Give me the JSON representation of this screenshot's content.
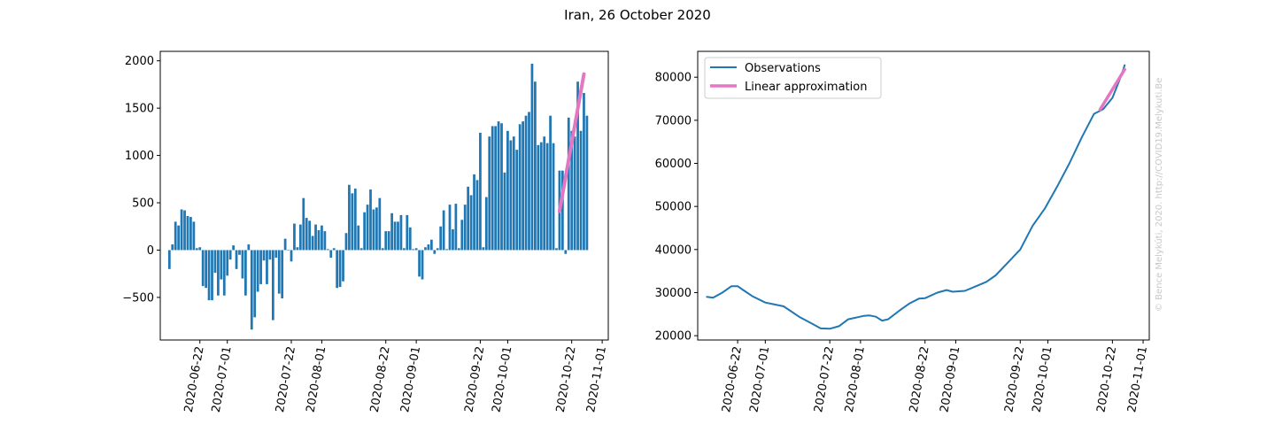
{
  "title": "Iran, 26 October 2020",
  "watermark": "© Bence Melykúti, 2020. http://COVID19.Melykuti.Be",
  "colors": {
    "bars": "#1f77b4",
    "observations": "#1f77b4",
    "approximation": "#e377c2"
  },
  "chart_data": [
    {
      "type": "bar",
      "title": "",
      "xlabel": "",
      "ylabel": "",
      "x_start": "2020-06-12",
      "xlim": [
        "2020-06-09",
        "2020-11-03"
      ],
      "ylim": [
        -950,
        2100
      ],
      "yticks": [
        -500,
        0,
        500,
        1000,
        1500,
        2000
      ],
      "ytick_labels": [
        "−500",
        "0",
        "500",
        "1000",
        "1500",
        "2000"
      ],
      "xticks": [
        "2020-06-22",
        "2020-07-01",
        "2020-07-22",
        "2020-08-01",
        "2020-08-22",
        "2020-09-01",
        "2020-09-22",
        "2020-10-01",
        "2020-10-22",
        "2020-11-01"
      ],
      "values": [
        -200,
        60,
        300,
        260,
        430,
        420,
        360,
        350,
        300,
        20,
        30,
        -380,
        -400,
        -530,
        -530,
        -240,
        -480,
        -310,
        -480,
        -270,
        -100,
        50,
        -200,
        -50,
        -300,
        -480,
        60,
        -840,
        -710,
        -440,
        -360,
        -110,
        -360,
        -100,
        -740,
        -80,
        -460,
        -510,
        120,
        0,
        -120,
        280,
        30,
        270,
        550,
        340,
        310,
        150,
        270,
        210,
        260,
        200,
        10,
        -80,
        20,
        -400,
        -390,
        -330,
        180,
        690,
        600,
        650,
        260,
        20,
        400,
        480,
        640,
        430,
        450,
        550,
        20,
        200,
        200,
        390,
        300,
        300,
        370,
        20,
        370,
        240,
        10,
        20,
        -280,
        -310,
        30,
        60,
        110,
        -40,
        20,
        250,
        420,
        10,
        480,
        220,
        490,
        20,
        320,
        480,
        670,
        580,
        800,
        740,
        1240,
        30,
        560,
        1200,
        1310,
        1310,
        1360,
        1340,
        820,
        1260,
        1160,
        1200,
        1060,
        1330,
        1360,
        1420,
        1460,
        1970,
        1780,
        1110,
        1140,
        1200,
        1130,
        1420,
        1130,
        20,
        840,
        840,
        -40,
        1400,
        1260,
        1200,
        1780,
        1260,
        1660,
        1420
      ],
      "series": [
        {
          "x": [
            "2020-10-18",
            "2020-10-26"
          ],
          "y": [
            410,
            1860
          ]
        }
      ]
    },
    {
      "type": "line",
      "title": "",
      "xlabel": "",
      "ylabel": "",
      "legend": "top-left",
      "xlim": [
        "2020-06-09",
        "2020-11-03"
      ],
      "ylim": [
        19000,
        86000
      ],
      "yticks": [
        20000,
        30000,
        40000,
        50000,
        60000,
        70000,
        80000
      ],
      "ytick_labels": [
        "20000",
        "30000",
        "40000",
        "50000",
        "60000",
        "70000",
        "80000"
      ],
      "xticks": [
        "2020-06-22",
        "2020-07-01",
        "2020-07-22",
        "2020-08-01",
        "2020-08-22",
        "2020-09-01",
        "2020-09-22",
        "2020-10-01",
        "2020-10-22",
        "2020-11-01"
      ],
      "series": [
        {
          "name": "Observations",
          "x": [
            "2020-06-12",
            "2020-06-14",
            "2020-06-17",
            "2020-06-20",
            "2020-06-22",
            "2020-06-24",
            "2020-06-27",
            "2020-07-01",
            "2020-07-03",
            "2020-07-07",
            "2020-07-12",
            "2020-07-17",
            "2020-07-19",
            "2020-07-22",
            "2020-07-25",
            "2020-07-28",
            "2020-08-02",
            "2020-08-04",
            "2020-08-06",
            "2020-08-08",
            "2020-08-10",
            "2020-08-14",
            "2020-08-17",
            "2020-08-20",
            "2020-08-22",
            "2020-08-26",
            "2020-08-29",
            "2020-08-31",
            "2020-09-04",
            "2020-09-08",
            "2020-09-11",
            "2020-09-14",
            "2020-09-18",
            "2020-09-22",
            "2020-09-26",
            "2020-09-30",
            "2020-10-04",
            "2020-10-08",
            "2020-10-12",
            "2020-10-16",
            "2020-10-19",
            "2020-10-22",
            "2020-10-25",
            "2020-10-26"
          ],
          "y": [
            29000,
            28800,
            30000,
            31500,
            31500,
            30500,
            29100,
            27700,
            27400,
            26800,
            24400,
            22500,
            21700,
            21600,
            22200,
            23800,
            24600,
            24700,
            24400,
            23500,
            23800,
            26000,
            27500,
            28600,
            28700,
            30000,
            30600,
            30200,
            30400,
            31600,
            32500,
            34000,
            37000,
            40000,
            45500,
            49500,
            54600,
            60000,
            66000,
            71500,
            72600,
            75200,
            80600,
            82800
          ]
        },
        {
          "name": "Linear approximation",
          "x": [
            "2020-10-18",
            "2020-10-26"
          ],
          "y": [
            72500,
            81800
          ]
        }
      ]
    }
  ]
}
